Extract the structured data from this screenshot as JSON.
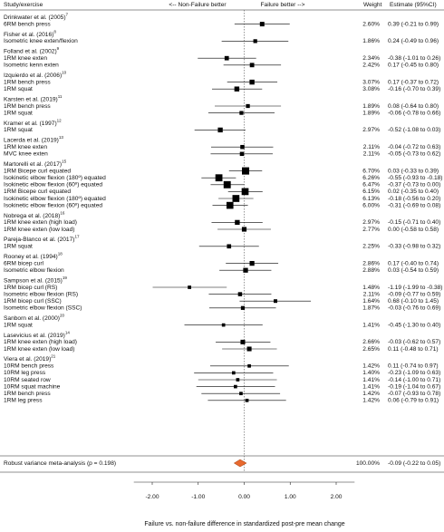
{
  "chart_data": {
    "type": "forest",
    "header": {
      "study": "Study/exercise",
      "left": "<-- Non-Failure better",
      "right": "Failure better -->",
      "weight": "Weight",
      "estimate": "Estimate (95%CI)"
    },
    "x_label": "Failure vs. non-failure difference in standardized post-pre mean change",
    "xlim": [
      -2.4,
      2.4
    ],
    "xticks": [
      {
        "value": -2,
        "label": "-2.00"
      },
      {
        "value": -1,
        "label": "-1.00"
      },
      {
        "value": 0,
        "label": "0.00"
      },
      {
        "value": 1,
        "label": "1.00"
      },
      {
        "value": 2,
        "label": "2.00"
      }
    ],
    "color": "#000000",
    "pooled_color": "#e8692f",
    "studies": [
      {
        "name": "Drinkwater et al. (2005)",
        "ref": "7",
        "rows": [
          {
            "label": "6RM bench press",
            "weight": 2.6,
            "weight_label": "2.60%",
            "estimate": 0.39,
            "lower": -0.21,
            "upper": 0.99,
            "estimate_label": "0.39 (-0.21 to 0.99)"
          }
        ]
      },
      {
        "name": "Fisher et al. (2016)",
        "ref": "8",
        "rows": [
          {
            "label": "Isometric knee exten/flexion",
            "weight": 1.86,
            "weight_label": "1.86%",
            "estimate": 0.24,
            "lower": -0.49,
            "upper": 0.96,
            "estimate_label": "0.24 (-0.49 to 0.96)"
          }
        ]
      },
      {
        "name": "Folland et al. (2002)",
        "ref": "9",
        "rows": [
          {
            "label": "1RM knee exten",
            "weight": 2.34,
            "weight_label": "2.34%",
            "estimate": -0.38,
            "lower": -1.01,
            "upper": 0.26,
            "estimate_label": "-0.38 (-1.01 to 0.26)"
          },
          {
            "label": "Isometric kenn exten",
            "weight": 2.42,
            "weight_label": "2.42%",
            "estimate": 0.17,
            "lower": -0.45,
            "upper": 0.8,
            "estimate_label": "0.17 (-0.45 to 0.80)"
          }
        ]
      },
      {
        "name": "Izquierdo et al. (2006)",
        "ref": "10",
        "rows": [
          {
            "label": "1RM bench press",
            "weight": 3.07,
            "weight_label": "3.07%",
            "estimate": 0.17,
            "lower": -0.37,
            "upper": 0.72,
            "estimate_label": "0.17 (-0.37 to 0.72)"
          },
          {
            "label": "1RM squat",
            "weight": 3.08,
            "weight_label": "3.08%",
            "estimate": -0.16,
            "lower": -0.7,
            "upper": 0.39,
            "estimate_label": "-0.16 (-0.70 to 0.39)"
          }
        ]
      },
      {
        "name": "Karsten et al. (2019)",
        "ref": "11",
        "rows": [
          {
            "label": "1RM bench press",
            "weight": 1.89,
            "weight_label": "1.89%",
            "estimate": 0.08,
            "lower": -0.64,
            "upper": 0.8,
            "estimate_label": "0.08 (-0.64 to 0.80)"
          },
          {
            "label": "1RM squat",
            "weight": 1.89,
            "weight_label": "1.89%",
            "estimate": -0.06,
            "lower": -0.78,
            "upper": 0.66,
            "estimate_label": "-0.06 (-0.78 to 0.66)"
          }
        ]
      },
      {
        "name": "Kramer et al. (1997)",
        "ref": "12",
        "rows": [
          {
            "label": "1RM squat",
            "weight": 2.97,
            "weight_label": "2.97%",
            "estimate": -0.52,
            "lower": -1.08,
            "upper": 0.03,
            "estimate_label": "-0.52 (-1.08 to 0.03)"
          }
        ]
      },
      {
        "name": "Lacerda et al. (2019)",
        "ref": "13",
        "rows": [
          {
            "label": "1RM knee exten",
            "weight": 2.11,
            "weight_label": "2.11%",
            "estimate": -0.04,
            "lower": -0.72,
            "upper": 0.63,
            "estimate_label": "-0.04 (-0.72 to 0.63)"
          },
          {
            "label": "MVC knee exten",
            "weight": 2.11,
            "weight_label": "2.11%",
            "estimate": -0.05,
            "lower": -0.73,
            "upper": 0.62,
            "estimate_label": "-0.05 (-0.73 to 0.62)"
          }
        ]
      },
      {
        "name": "Martorelli et al. (2017)",
        "ref": "15",
        "rows": [
          {
            "label": "1RM Bicepe curl equated",
            "weight": 6.7,
            "weight_label": "6.70%",
            "estimate": 0.03,
            "lower": -0.33,
            "upper": 0.39,
            "estimate_label": "0.03 (-0.33 to 0.39)"
          },
          {
            "label": "Isokinetic elbow flexion (180º) equated",
            "weight": 6.26,
            "weight_label": "6.26%",
            "estimate": -0.55,
            "lower": -0.93,
            "upper": -0.18,
            "estimate_label": "-0.55 (-0.93 to -0.18)"
          },
          {
            "label": "Isokinetic elbow flexion (60º) equated",
            "weight": 6.47,
            "weight_label": "6.47%",
            "estimate": -0.37,
            "lower": -0.73,
            "upper": 0.0,
            "estimate_label": "-0.37 (-0.73 to 0.00)"
          },
          {
            "label": "1RM Bicepe curl equated",
            "weight": 6.15,
            "weight_label": "6.15%",
            "estimate": 0.02,
            "lower": -0.35,
            "upper": 0.4,
            "estimate_label": "0.02 (-0.35 to 0.40)"
          },
          {
            "label": "Isokinetic elbow flexion (180º) equated",
            "weight": 6.13,
            "weight_label": "6.13%",
            "estimate": -0.18,
            "lower": -0.56,
            "upper": 0.2,
            "estimate_label": "-0.18 (-0.56 to 0.20)"
          },
          {
            "label": "Isokinetic elbow flexion (60º) equated",
            "weight": 6.0,
            "weight_label": "6.00%",
            "estimate": -0.31,
            "lower": -0.69,
            "upper": 0.08,
            "estimate_label": "-0.31 (-0.69 to 0.08)"
          }
        ]
      },
      {
        "name": "Nobrega et al. (2018)",
        "ref": "16",
        "rows": [
          {
            "label": "1RM knee exten (high load)",
            "weight": 2.97,
            "weight_label": "2.97%",
            "estimate": -0.15,
            "lower": -0.71,
            "upper": 0.4,
            "estimate_label": "-0.15 (-0.71 to 0.40)"
          },
          {
            "label": "1RM knee exten (low load)",
            "weight": 2.77,
            "weight_label": "2.77%",
            "estimate": 0.0,
            "lower": -0.58,
            "upper": 0.58,
            "estimate_label": "0.00 (-0.58 to 0.58)"
          }
        ]
      },
      {
        "name": "Pareja-Blanco et al. (2017)",
        "ref": "17",
        "rows": [
          {
            "label": "1RM squat",
            "weight": 2.25,
            "weight_label": "2.25%",
            "estimate": -0.33,
            "lower": -0.98,
            "upper": 0.32,
            "estimate_label": "-0.33 (-0.98 to 0.32)"
          }
        ]
      },
      {
        "name": "Rooney et al. (1994)",
        "ref": "18",
        "rows": [
          {
            "label": "6RM bicep curl",
            "weight": 2.86,
            "weight_label": "2.86%",
            "estimate": 0.17,
            "lower": -0.4,
            "upper": 0.74,
            "estimate_label": "0.17 (-0.40 to 0.74)"
          },
          {
            "label": "Isometric elbow flexion",
            "weight": 2.88,
            "weight_label": "2.88%",
            "estimate": 0.03,
            "lower": -0.54,
            "upper": 0.59,
            "estimate_label": "0.03 (-0.54 to 0.59)"
          }
        ]
      },
      {
        "name": "Sampson et al. (2015)",
        "ref": "19",
        "rows": [
          {
            "label": "1RM bicep curl (RS)",
            "weight": 1.48,
            "weight_label": "1.48%",
            "estimate": -1.19,
            "lower": -1.99,
            "upper": -0.38,
            "estimate_label": "-1.19 (-1.99 to -0.38)"
          },
          {
            "label": "Isometric elbow flexion (RS)",
            "weight": 2.11,
            "weight_label": "2.11%",
            "estimate": -0.09,
            "lower": -0.77,
            "upper": 0.59,
            "estimate_label": "-0.09 (-0.77 to 0.59)"
          },
          {
            "label": "1RM bicep curl (SSC)",
            "weight": 1.64,
            "weight_label": "1.64%",
            "estimate": 0.68,
            "lower": -0.1,
            "upper": 1.45,
            "estimate_label": "0.68 (-0.10 to 1.45)"
          },
          {
            "label": "Isometric elbow flexion (SSC)",
            "weight": 1.87,
            "weight_label": "1.87%",
            "estimate": -0.03,
            "lower": -0.76,
            "upper": 0.69,
            "estimate_label": "-0.03 (-0.76 to 0.69)"
          }
        ]
      },
      {
        "name": "Sanborn et al. (2000)",
        "ref": "20",
        "rows": [
          {
            "label": "1RM squat",
            "weight": 1.41,
            "weight_label": "1.41%",
            "estimate": -0.45,
            "lower": -1.3,
            "upper": 0.4,
            "estimate_label": "-0.45 (-1.30 to 0.40)"
          }
        ]
      },
      {
        "name": "Lasevicius et al. (2019)",
        "ref": "14",
        "rows": [
          {
            "label": "1RM knee exten (high load)",
            "weight": 2.66,
            "weight_label": "2.66%",
            "estimate": -0.03,
            "lower": -0.62,
            "upper": 0.57,
            "estimate_label": "-0.03 (-0.62 to 0.57)"
          },
          {
            "label": "1RM knee exten (low load)",
            "weight": 2.65,
            "weight_label": "2.65%",
            "estimate": 0.11,
            "lower": -0.48,
            "upper": 0.71,
            "estimate_label": "0.11 (-0.48 to 0.71)"
          }
        ]
      },
      {
        "name": "Viera et al. (2019)",
        "ref": "21",
        "rows": [
          {
            "label": "10RM bench press",
            "weight": 1.42,
            "weight_label": "1.42%",
            "estimate": 0.11,
            "lower": -0.74,
            "upper": 0.97,
            "estimate_label": "0.11 (-0.74 to 0.97)"
          },
          {
            "label": "10RM leg press",
            "weight": 1.4,
            "weight_label": "1.40%",
            "estimate": -0.23,
            "lower": -1.09,
            "upper": 0.63,
            "estimate_label": "-0.23 (-1.09 to 0.63)"
          },
          {
            "label": "10RM seated row",
            "weight": 1.41,
            "weight_label": "1.41%",
            "estimate": -0.14,
            "lower": -1.0,
            "upper": 0.71,
            "estimate_label": "-0.14 (-1.00 to 0.71)"
          },
          {
            "label": "10RM squat machine",
            "weight": 1.41,
            "weight_label": "1.41%",
            "estimate": -0.19,
            "lower": -1.04,
            "upper": 0.67,
            "estimate_label": "-0.19 (-1.04 to 0.67)"
          },
          {
            "label": "1RM bench press",
            "weight": 1.42,
            "weight_label": "1.42%",
            "estimate": -0.07,
            "lower": -0.93,
            "upper": 0.78,
            "estimate_label": "-0.07 (-0.93 to 0.78)"
          },
          {
            "label": "1RM leg press",
            "weight": 1.42,
            "weight_label": "1.42%",
            "estimate": 0.06,
            "lower": -0.79,
            "upper": 0.91,
            "estimate_label": "0.06 (-0.79 to 0.91)"
          }
        ]
      }
    ],
    "pooled": {
      "label": "Robust variance meta-analysis (p = 0.198)",
      "weight": 100.0,
      "weight_label": "100.00%",
      "estimate": -0.09,
      "lower": -0.22,
      "upper": 0.05,
      "estimate_label": "-0.09 (-0.22 to 0.05)"
    }
  }
}
